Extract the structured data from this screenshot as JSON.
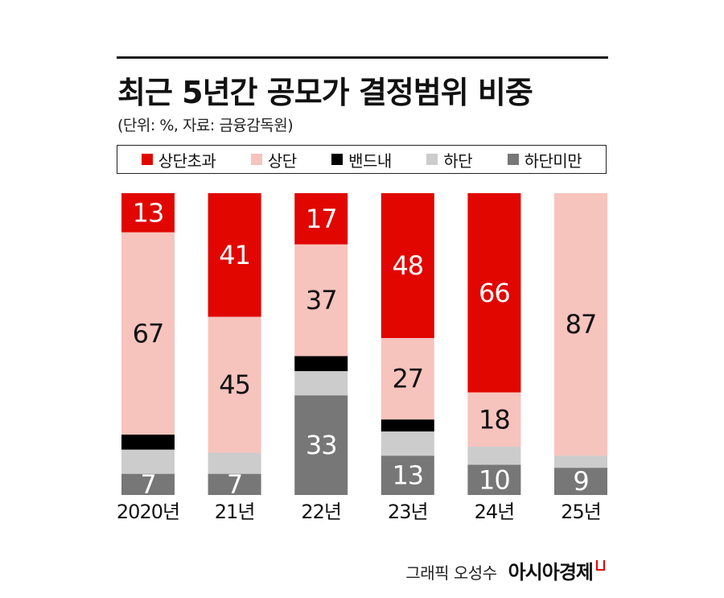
{
  "title": "최근 5년간 공모가 결정범위 비중",
  "subtitle": "(단위: %, 자료: 금융감독원)",
  "legend": [
    {
      "label": "상단초과",
      "color": "#e10600"
    },
    {
      "label": "상단",
      "color": "#f7c3bd"
    },
    {
      "label": "밴드내",
      "color": "#000000"
    },
    {
      "label": "하단",
      "color": "#cccccc"
    },
    {
      "label": "하단미만",
      "color": "#777777"
    }
  ],
  "credit": {
    "text": "그래픽 오성수",
    "brand": "아시아경제"
  },
  "chart_data": {
    "type": "bar",
    "stacked": true,
    "categories": [
      "2020년",
      "21년",
      "22년",
      "23년",
      "24년",
      "25년"
    ],
    "series": [
      {
        "name": "상단초과",
        "color": "#e10600",
        "values": [
          13,
          41,
          17,
          48,
          66,
          0
        ],
        "labels": [
          "13",
          "41",
          "17",
          "48",
          "66",
          ""
        ]
      },
      {
        "name": "상단",
        "color": "#f7c3bd",
        "values": [
          67,
          45,
          37,
          27,
          18,
          87
        ],
        "labels": [
          "67",
          "45",
          "37",
          "27",
          "18",
          "87"
        ]
      },
      {
        "name": "밴드내",
        "color": "#000000",
        "values": [
          5,
          0,
          5,
          4,
          0,
          0
        ],
        "labels": [
          "",
          "",
          "",
          "",
          "",
          ""
        ]
      },
      {
        "name": "하단",
        "color": "#cccccc",
        "values": [
          8,
          7,
          8,
          8,
          6,
          4
        ],
        "labels": [
          "",
          "",
          "",
          "",
          "",
          ""
        ]
      },
      {
        "name": "하단미만",
        "color": "#777777",
        "values": [
          7,
          7,
          33,
          13,
          10,
          9
        ],
        "labels": [
          "7",
          "7",
          "33",
          "13",
          "10",
          "9"
        ]
      }
    ],
    "ylim": [
      0,
      100
    ]
  }
}
